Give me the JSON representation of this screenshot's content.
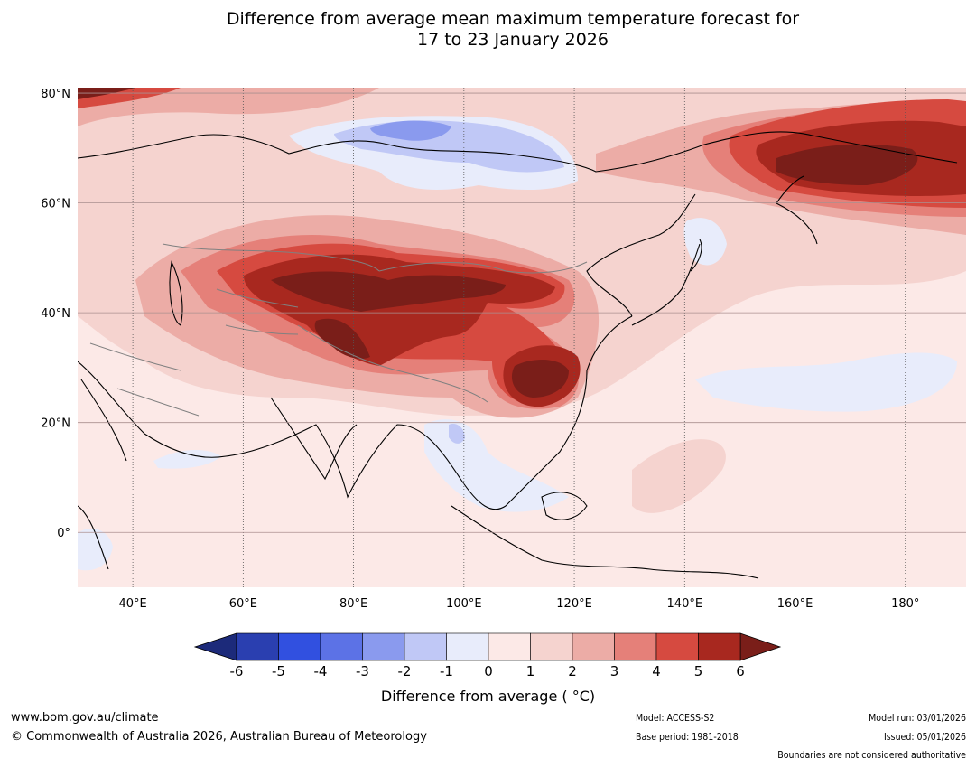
{
  "title": {
    "line1": "Difference from average mean maximum temperature forecast for",
    "line2": "17 to 23 January 2026"
  },
  "map": {
    "lat_labels": [
      "80°N",
      "60°N",
      "40°N",
      "20°N",
      "0°"
    ],
    "lat_values": [
      80,
      60,
      40,
      20,
      0
    ],
    "lon_labels": [
      "40°E",
      "60°E",
      "80°E",
      "100°E",
      "120°E",
      "140°E",
      "160°E",
      "180°"
    ],
    "lon_values": [
      40,
      60,
      80,
      100,
      120,
      140,
      160,
      180
    ],
    "extent": {
      "lon_min": 30,
      "lon_max": 191,
      "lat_min": -10,
      "lat_max": 81
    },
    "anomaly_regions": [
      {
        "name": "central-asia-warm",
        "lon": 85,
        "lat": 42,
        "value": 6
      },
      {
        "name": "tibet-warm",
        "lon": 88,
        "lat": 33,
        "value": 6
      },
      {
        "name": "mongolia-warm",
        "lon": 110,
        "lat": 44,
        "value": 6
      },
      {
        "name": "south-china-warm",
        "lon": 113,
        "lat": 28,
        "value": 6
      },
      {
        "name": "east-siberia-warm",
        "lon": 170,
        "lat": 65,
        "value": 6
      },
      {
        "name": "arctic-siberia-cool",
        "lon": 95,
        "lat": 72,
        "value": -3
      },
      {
        "name": "indochina-cool",
        "lon": 100,
        "lat": 16,
        "value": -1
      },
      {
        "name": "north-pacific-cool",
        "lon": 175,
        "lat": 25,
        "value": -1
      }
    ]
  },
  "colorbar": {
    "ticks": [
      "-6",
      "-5",
      "-4",
      "-3",
      "-2",
      "-1",
      "0",
      "1",
      "2",
      "3",
      "4",
      "5",
      "6"
    ],
    "colors": [
      "#1c2a7a",
      "#2a3fb0",
      "#3150e0",
      "#5c72e6",
      "#8a9aee",
      "#c0c8f6",
      "#e8ecfb",
      "#fce9e7",
      "#f5d3cf",
      "#ecaca6",
      "#e58079",
      "#d64a40",
      "#a8281f",
      "#7a1e19"
    ],
    "label": "Difference from average ( °C)"
  },
  "footer": {
    "website": "www.bom.gov.au/climate",
    "copyright": "© Commonwealth of Australia 2026, Australian Bureau of Meteorology",
    "model": "Model: ACCESS-S2",
    "base_period": "Base period: 1981-2018",
    "model_run": "Model run: 03/01/2026",
    "issued": "Issued: 05/01/2026",
    "boundaries_note": "Boundaries are not considered authoritative"
  }
}
